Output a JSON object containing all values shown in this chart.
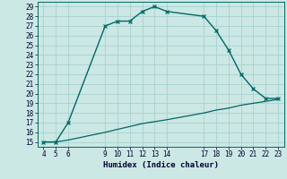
{
  "xlabel": "Humidex (Indice chaleur)",
  "ylabel": "",
  "bg_color": "#cce8e4",
  "line_color": "#006666",
  "grid_color": "#aad4d0",
  "curve1_x": [
    4,
    5,
    6,
    9,
    10,
    11,
    12,
    13,
    14,
    17,
    18,
    19,
    20,
    21,
    22,
    23
  ],
  "curve1_y": [
    15,
    15,
    17,
    27,
    27.5,
    27.5,
    28.5,
    29,
    28.5,
    28,
    26.5,
    24.5,
    22,
    20.5,
    19.5,
    19.5
  ],
  "curve2_x": [
    4,
    5,
    6,
    9,
    10,
    11,
    12,
    13,
    14,
    17,
    18,
    19,
    20,
    21,
    22,
    23
  ],
  "curve2_y": [
    15,
    15,
    15.2,
    16.0,
    16.3,
    16.6,
    16.9,
    17.1,
    17.3,
    18.0,
    18.3,
    18.5,
    18.8,
    19.0,
    19.2,
    19.4
  ],
  "xlim": [
    3.5,
    23.5
  ],
  "ylim": [
    14.5,
    29.5
  ],
  "xticks": [
    4,
    5,
    6,
    9,
    10,
    11,
    12,
    13,
    14,
    17,
    18,
    19,
    20,
    21,
    22,
    23
  ],
  "yticks": [
    15,
    16,
    17,
    18,
    19,
    20,
    21,
    22,
    23,
    24,
    25,
    26,
    27,
    28,
    29
  ]
}
